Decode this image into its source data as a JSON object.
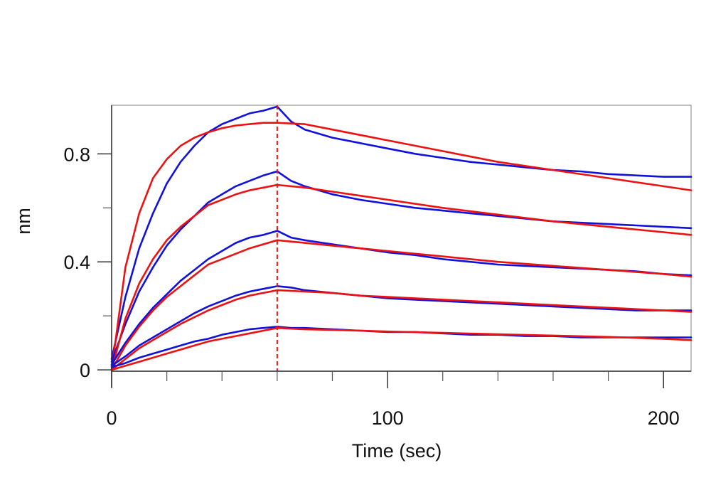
{
  "chart_data": {
    "type": "line",
    "title": "",
    "xlabel": "Time (sec)",
    "ylabel": "nm",
    "xlim": [
      0,
      210
    ],
    "ylim": [
      -0.005,
      0.98
    ],
    "x_ticks": [
      0,
      100,
      200
    ],
    "x_tick_labels": [
      "0",
      "100",
      "200"
    ],
    "x_minor_ticks": [
      20,
      40,
      60,
      80,
      120,
      140,
      160,
      180
    ],
    "y_ticks": [
      0,
      0.4,
      0.8
    ],
    "y_tick_labels": [
      "0",
      "0.4",
      "0.8"
    ],
    "y_minor_ticks": [
      0.2,
      0.6
    ],
    "grid": false,
    "legend": "none",
    "annotations": [
      {
        "type": "vertical-dashed-line",
        "x": 60,
        "color": "#ee1111"
      }
    ],
    "colors": {
      "measured": "#1111dd",
      "fit": "#ee1111",
      "frame": "#aaaaaa"
    },
    "series": [
      {
        "kind": "measured",
        "x": [
          0,
          5,
          10,
          15,
          20,
          25,
          30,
          35,
          40,
          45,
          50,
          55,
          60,
          65,
          70,
          80,
          90,
          100,
          110,
          120,
          130,
          140,
          150,
          160,
          170,
          180,
          190,
          200,
          210
        ],
        "y": [
          0.04,
          0.27,
          0.45,
          0.58,
          0.69,
          0.77,
          0.83,
          0.88,
          0.91,
          0.93,
          0.95,
          0.96,
          0.975,
          0.92,
          0.89,
          0.86,
          0.84,
          0.82,
          0.8,
          0.785,
          0.77,
          0.76,
          0.75,
          0.74,
          0.735,
          0.725,
          0.72,
          0.715,
          0.715
        ]
      },
      {
        "kind": "fit",
        "x": [
          0,
          5,
          10,
          15,
          20,
          25,
          30,
          35,
          40,
          45,
          50,
          55,
          60,
          70,
          80,
          90,
          100,
          120,
          140,
          160,
          180,
          200,
          210
        ],
        "y": [
          0.0,
          0.38,
          0.58,
          0.71,
          0.78,
          0.83,
          0.86,
          0.88,
          0.895,
          0.905,
          0.91,
          0.915,
          0.915,
          0.91,
          0.89,
          0.87,
          0.85,
          0.81,
          0.77,
          0.74,
          0.71,
          0.68,
          0.665
        ]
      },
      {
        "kind": "measured",
        "x": [
          0,
          5,
          10,
          15,
          20,
          25,
          30,
          35,
          40,
          45,
          50,
          55,
          60,
          65,
          70,
          80,
          90,
          100,
          110,
          120,
          130,
          140,
          150,
          160,
          170,
          180,
          190,
          200,
          210
        ],
        "y": [
          0.03,
          0.17,
          0.29,
          0.38,
          0.46,
          0.52,
          0.57,
          0.62,
          0.65,
          0.68,
          0.7,
          0.72,
          0.735,
          0.7,
          0.68,
          0.65,
          0.63,
          0.615,
          0.6,
          0.59,
          0.58,
          0.57,
          0.56,
          0.55,
          0.545,
          0.54,
          0.535,
          0.53,
          0.525
        ]
      },
      {
        "kind": "fit",
        "x": [
          0,
          5,
          10,
          15,
          20,
          25,
          30,
          35,
          40,
          45,
          50,
          55,
          60,
          70,
          80,
          90,
          100,
          120,
          140,
          160,
          180,
          200,
          210
        ],
        "y": [
          0.0,
          0.19,
          0.32,
          0.41,
          0.48,
          0.53,
          0.57,
          0.61,
          0.63,
          0.65,
          0.665,
          0.675,
          0.685,
          0.675,
          0.66,
          0.645,
          0.63,
          0.6,
          0.575,
          0.55,
          0.53,
          0.51,
          0.5
        ]
      },
      {
        "kind": "measured",
        "x": [
          0,
          5,
          10,
          15,
          20,
          25,
          30,
          35,
          40,
          45,
          50,
          55,
          60,
          65,
          70,
          80,
          90,
          100,
          110,
          120,
          130,
          140,
          150,
          160,
          170,
          180,
          190,
          200,
          210
        ],
        "y": [
          0.02,
          0.1,
          0.17,
          0.23,
          0.28,
          0.33,
          0.37,
          0.41,
          0.44,
          0.47,
          0.49,
          0.5,
          0.515,
          0.49,
          0.48,
          0.465,
          0.45,
          0.435,
          0.425,
          0.41,
          0.4,
          0.39,
          0.385,
          0.38,
          0.375,
          0.37,
          0.365,
          0.355,
          0.35
        ]
      },
      {
        "kind": "fit",
        "x": [
          0,
          5,
          10,
          15,
          20,
          25,
          30,
          35,
          40,
          45,
          50,
          55,
          60,
          70,
          80,
          90,
          100,
          120,
          140,
          160,
          180,
          200,
          210
        ],
        "y": [
          0.0,
          0.09,
          0.16,
          0.22,
          0.27,
          0.31,
          0.35,
          0.39,
          0.41,
          0.43,
          0.45,
          0.465,
          0.48,
          0.47,
          0.46,
          0.45,
          0.44,
          0.42,
          0.4,
          0.385,
          0.37,
          0.355,
          0.345
        ]
      },
      {
        "kind": "measured",
        "x": [
          0,
          5,
          10,
          15,
          20,
          25,
          30,
          35,
          40,
          45,
          50,
          55,
          60,
          65,
          70,
          80,
          90,
          100,
          110,
          120,
          130,
          140,
          150,
          160,
          170,
          180,
          190,
          200,
          210
        ],
        "y": [
          0.015,
          0.05,
          0.09,
          0.12,
          0.15,
          0.18,
          0.21,
          0.235,
          0.255,
          0.275,
          0.29,
          0.3,
          0.31,
          0.305,
          0.295,
          0.285,
          0.275,
          0.265,
          0.26,
          0.255,
          0.25,
          0.245,
          0.24,
          0.235,
          0.23,
          0.225,
          0.22,
          0.22,
          0.22
        ]
      },
      {
        "kind": "fit",
        "x": [
          0,
          5,
          10,
          15,
          20,
          25,
          30,
          35,
          40,
          45,
          50,
          55,
          60,
          70,
          80,
          90,
          100,
          120,
          140,
          160,
          180,
          200,
          210
        ],
        "y": [
          0.0,
          0.04,
          0.08,
          0.11,
          0.14,
          0.17,
          0.195,
          0.22,
          0.24,
          0.26,
          0.275,
          0.285,
          0.295,
          0.29,
          0.285,
          0.275,
          0.27,
          0.26,
          0.25,
          0.24,
          0.23,
          0.22,
          0.215
        ]
      },
      {
        "kind": "measured",
        "x": [
          0,
          5,
          10,
          15,
          20,
          25,
          30,
          35,
          40,
          45,
          50,
          55,
          60,
          65,
          70,
          80,
          90,
          100,
          110,
          120,
          130,
          140,
          150,
          160,
          170,
          180,
          190,
          200,
          210
        ],
        "y": [
          0.01,
          0.025,
          0.045,
          0.06,
          0.075,
          0.09,
          0.105,
          0.115,
          0.13,
          0.14,
          0.15,
          0.155,
          0.16,
          0.155,
          0.155,
          0.15,
          0.145,
          0.14,
          0.14,
          0.135,
          0.13,
          0.13,
          0.125,
          0.125,
          0.12,
          0.12,
          0.12,
          0.12,
          0.12
        ]
      },
      {
        "kind": "fit",
        "x": [
          0,
          5,
          10,
          15,
          20,
          25,
          30,
          35,
          40,
          45,
          50,
          55,
          60,
          70,
          80,
          90,
          100,
          120,
          140,
          160,
          180,
          200,
          210
        ],
        "y": [
          0.0,
          0.015,
          0.03,
          0.045,
          0.06,
          0.075,
          0.09,
          0.105,
          0.115,
          0.125,
          0.135,
          0.145,
          0.155,
          0.15,
          0.148,
          0.145,
          0.142,
          0.137,
          0.132,
          0.127,
          0.122,
          0.115,
          0.11
        ]
      }
    ]
  }
}
